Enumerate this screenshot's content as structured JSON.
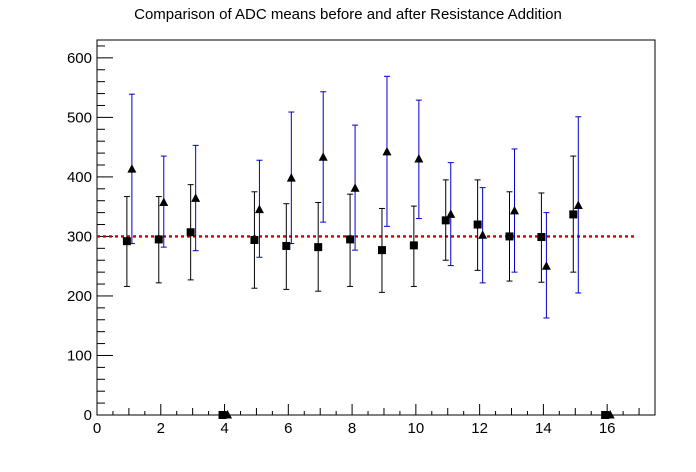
{
  "chart_data": {
    "type": "scatter",
    "title": "Comparison of ADC means before and after Resistance Addition",
    "xlabel": "",
    "ylabel": "",
    "xlim": [
      0,
      17.5
    ],
    "ylim": [
      0,
      630
    ],
    "x_ticks": [
      0,
      2,
      4,
      6,
      8,
      10,
      12,
      14,
      16
    ],
    "x_tick_labels": [
      "0",
      "2",
      "4",
      "6",
      "8",
      "10",
      "12",
      "14",
      "16"
    ],
    "y_ticks": [
      0,
      100,
      200,
      300,
      400,
      500,
      600
    ],
    "y_tick_labels": [
      "0",
      "100",
      "200",
      "300",
      "400",
      "500",
      "600"
    ],
    "grid": false,
    "reference_line": {
      "y": 300,
      "color": "#cc0000",
      "style": "dotted"
    },
    "series": [
      {
        "marker": "square",
        "color": "#000000",
        "error_color": "#000000",
        "points": [
          {
            "x": 1,
            "y": 292,
            "err_low": 216,
            "err_high": 367
          },
          {
            "x": 2,
            "y": 295,
            "err_low": 222,
            "err_high": 367
          },
          {
            "x": 3,
            "y": 307,
            "err_low": 227,
            "err_high": 387
          },
          {
            "x": 4,
            "y": 0
          },
          {
            "x": 5,
            "y": 294,
            "err_low": 213,
            "err_high": 375
          },
          {
            "x": 6,
            "y": 284,
            "err_low": 211,
            "err_high": 355
          },
          {
            "x": 7,
            "y": 282,
            "err_low": 208,
            "err_high": 357
          },
          {
            "x": 8,
            "y": 295,
            "err_low": 216,
            "err_high": 371
          },
          {
            "x": 9,
            "y": 277,
            "err_low": 206,
            "err_high": 347
          },
          {
            "x": 10,
            "y": 285,
            "err_low": 216,
            "err_high": 351
          },
          {
            "x": 11,
            "y": 327,
            "err_low": 260,
            "err_high": 395
          },
          {
            "x": 12,
            "y": 320,
            "err_low": 243,
            "err_high": 395
          },
          {
            "x": 13,
            "y": 300,
            "err_low": 225,
            "err_high": 375
          },
          {
            "x": 14,
            "y": 299,
            "err_low": 223,
            "err_high": 373
          },
          {
            "x": 15,
            "y": 337,
            "err_low": 240,
            "err_high": 435
          },
          {
            "x": 16,
            "y": 0
          }
        ]
      },
      {
        "marker": "triangle",
        "color": "#000000",
        "error_color": "#0000cc",
        "points": [
          {
            "x": 1,
            "y": 413,
            "err_low": 288,
            "err_high": 539
          },
          {
            "x": 2,
            "y": 357,
            "err_low": 282,
            "err_high": 435
          },
          {
            "x": 3,
            "y": 364,
            "err_low": 276,
            "err_high": 453
          },
          {
            "x": 4,
            "y": 0
          },
          {
            "x": 5,
            "y": 345,
            "err_low": 265,
            "err_high": 428
          },
          {
            "x": 6,
            "y": 398,
            "err_low": 288,
            "err_high": 509
          },
          {
            "x": 7,
            "y": 433,
            "err_low": 324,
            "err_high": 543
          },
          {
            "x": 8,
            "y": 381,
            "err_low": 277,
            "err_high": 487
          },
          {
            "x": 9,
            "y": 442,
            "err_low": 317,
            "err_high": 569
          },
          {
            "x": 10,
            "y": 430,
            "err_low": 330,
            "err_high": 529
          },
          {
            "x": 11,
            "y": 337,
            "err_low": 251,
            "err_high": 424
          },
          {
            "x": 12,
            "y": 302,
            "err_low": 222,
            "err_high": 382
          },
          {
            "x": 13,
            "y": 343,
            "err_low": 240,
            "err_high": 447
          },
          {
            "x": 14,
            "y": 250,
            "err_low": 163,
            "err_high": 340
          },
          {
            "x": 15,
            "y": 352,
            "err_low": 205,
            "err_high": 501
          },
          {
            "x": 16,
            "y": 0
          }
        ]
      }
    ]
  }
}
